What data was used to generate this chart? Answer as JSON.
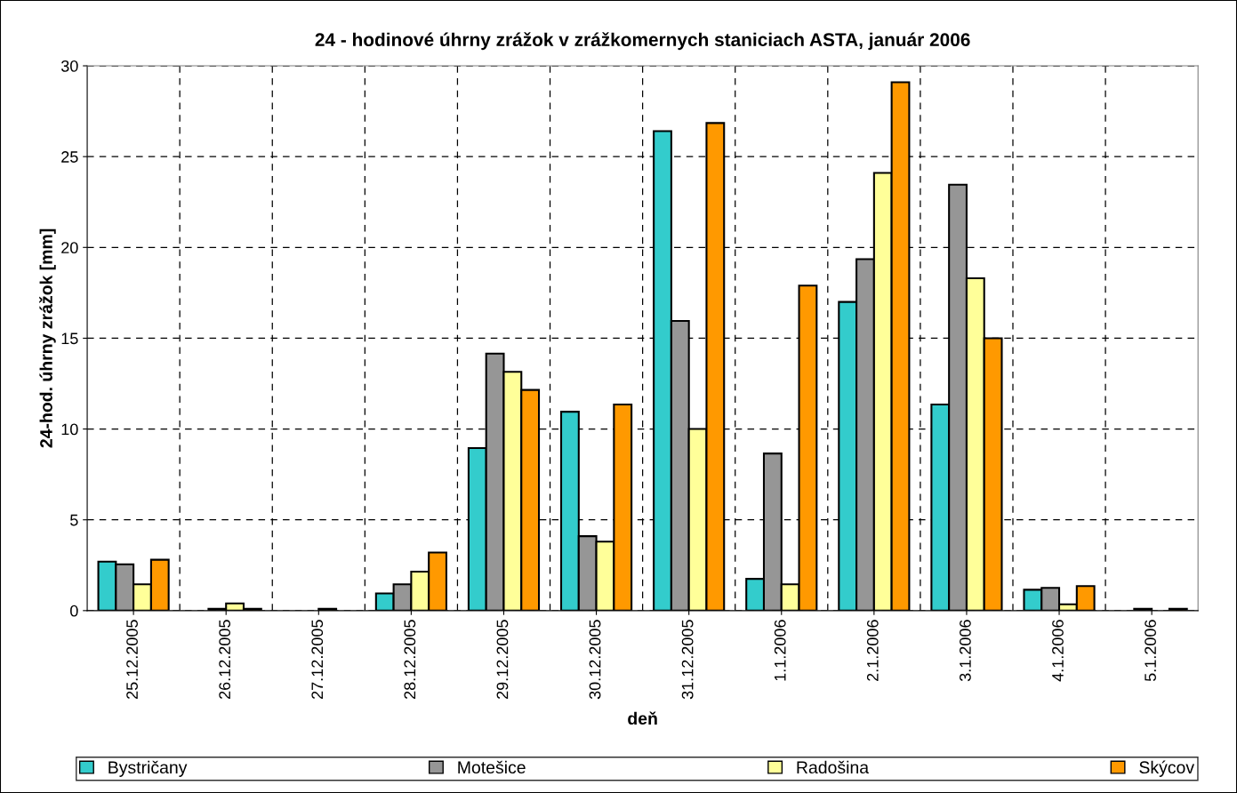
{
  "chart_data": {
    "type": "bar",
    "title": "24 - hodinové úhrny zrážok v zrážkomernych staniciach ASTA, január 2006",
    "xlabel": "deň",
    "ylabel": "24-hod. úhrny zrážok [mm]",
    "categories": [
      "25.12.2005",
      "26.12.2005",
      "27.12.2005",
      "28.12.2005",
      "29.12.2005",
      "30.12.2005",
      "31.12.2005",
      "1.1.2006",
      "2.1.2006",
      "3.1.2006",
      "4.1.2006",
      "5.1.2006"
    ],
    "series": [
      {
        "name": "Bystričany",
        "color": "#33cccc",
        "values": [
          2.7,
          null,
          null,
          0.95,
          8.95,
          10.95,
          26.4,
          1.75,
          17.0,
          11.35,
          1.15,
          null
        ]
      },
      {
        "name": "Motešice",
        "color": "#969696",
        "values": [
          2.55,
          0.1,
          null,
          1.45,
          14.15,
          4.1,
          15.95,
          8.65,
          19.35,
          23.45,
          1.25,
          0.1
        ]
      },
      {
        "name": "Radošina",
        "color": "#ffff99",
        "values": [
          1.45,
          0.4,
          0.1,
          2.15,
          13.15,
          3.8,
          10.0,
          1.45,
          24.1,
          18.3,
          0.35,
          null
        ]
      },
      {
        "name": "Skýcov",
        "color": "#ff9900",
        "values": [
          2.8,
          0.1,
          null,
          3.2,
          12.15,
          11.35,
          26.85,
          17.9,
          29.1,
          15.0,
          1.35,
          0.1
        ]
      }
    ],
    "ylim": [
      0,
      30
    ],
    "yticks": [
      0,
      5,
      10,
      15,
      20,
      25,
      30
    ],
    "grid": true,
    "legend": "bottom"
  }
}
